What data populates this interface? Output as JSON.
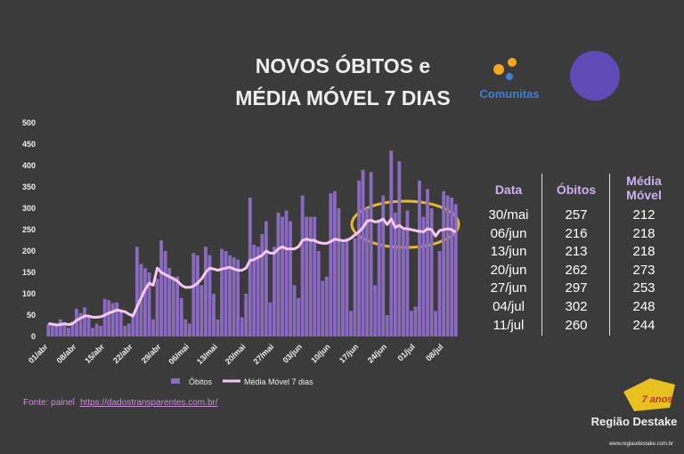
{
  "chart_data": {
    "type": "bar_line",
    "title_lines": [
      "NOVOS ÓBITOS e",
      "MÉDIA MÓVEL 7 DIAS"
    ],
    "categories": [
      "01/abr",
      null,
      null,
      null,
      null,
      null,
      null,
      "08/abr",
      null,
      null,
      null,
      null,
      null,
      null,
      "15/abr",
      null,
      null,
      null,
      null,
      null,
      null,
      "22/abr",
      null,
      null,
      null,
      null,
      null,
      null,
      "29/abr",
      null,
      null,
      null,
      null,
      null,
      null,
      "06/mai",
      null,
      null,
      null,
      null,
      null,
      null,
      "13/mai",
      null,
      null,
      null,
      null,
      null,
      null,
      "20/mai",
      null,
      null,
      null,
      null,
      null,
      null,
      "27/mai",
      null,
      null,
      null,
      null,
      null,
      null,
      "03/jun",
      null,
      null,
      null,
      null,
      null,
      null,
      "10/jun",
      null,
      null,
      null,
      null,
      null,
      null,
      "17/jun",
      null,
      null,
      null,
      null,
      null,
      null,
      "24/jun",
      null,
      null,
      null,
      null,
      null,
      null,
      "01/jul",
      null,
      null,
      null,
      null,
      null,
      null,
      "08/jul",
      null,
      null,
      null
    ],
    "series": [
      {
        "name": "Óbitos",
        "color": "#8a6bc0",
        "kind": "bar",
        "values": [
          28,
          30,
          25,
          40,
          30,
          20,
          35,
          65,
          55,
          68,
          45,
          20,
          30,
          25,
          88,
          85,
          78,
          80,
          60,
          25,
          30,
          55,
          210,
          170,
          160,
          150,
          40,
          135,
          225,
          200,
          160,
          140,
          140,
          90,
          40,
          30,
          195,
          190,
          120,
          210,
          190,
          100,
          40,
          205,
          200,
          190,
          185,
          180,
          45,
          100,
          325,
          215,
          210,
          240,
          270,
          80,
          210,
          290,
          280,
          295,
          270,
          120,
          90,
          330,
          280,
          280,
          280,
          200,
          130,
          140,
          335,
          340,
          300,
          220,
          230,
          60,
          230,
          365,
          390,
          300,
          385,
          120,
          270,
          330,
          50,
          435,
          290,
          410,
          250,
          295,
          60,
          70,
          365,
          280,
          345,
          300,
          60,
          200,
          340,
          330,
          325,
          310
        ]
      },
      {
        "name": "Média Móvel 7 dias",
        "color": "#f4c8f2",
        "kind": "line",
        "values": [
          30,
          29,
          27,
          28,
          30,
          28,
          30,
          38,
          43,
          48,
          48,
          45,
          45,
          46,
          50,
          55,
          58,
          62,
          60,
          58,
          52,
          48,
          70,
          90,
          110,
          125,
          120,
          160,
          150,
          145,
          140,
          135,
          130,
          120,
          115,
          115,
          118,
          125,
          135,
          150,
          160,
          158,
          155,
          158,
          160,
          162,
          158,
          155,
          155,
          160,
          178,
          180,
          185,
          190,
          200,
          195,
          195,
          205,
          210,
          205,
          205,
          205,
          210,
          225,
          228,
          225,
          225,
          220,
          218,
          218,
          222,
          228,
          226,
          224,
          225,
          230,
          238,
          245,
          255,
          270,
          272,
          268,
          270,
          275,
          262,
          275,
          255,
          260,
          253,
          252,
          250,
          248,
          246,
          245,
          252,
          250,
          235,
          248,
          250,
          252,
          250,
          244
        ]
      }
    ],
    "ylim": [
      0,
      500
    ],
    "yticks": [
      0,
      50,
      100,
      150,
      200,
      250,
      300,
      350,
      400,
      450,
      500
    ],
    "grid": false
  },
  "table": {
    "header": [
      "Data",
      "Óbitos",
      "Média Móvel"
    ],
    "rows": [
      [
        "30/mai",
        257,
        212
      ],
      [
        "06/jun",
        216,
        218
      ],
      [
        "13/jun",
        213,
        218
      ],
      [
        "20/jun",
        262,
        273
      ],
      [
        "27/jun",
        297,
        253
      ],
      [
        "04/jul",
        302,
        248
      ],
      [
        "11/jul",
        260,
        244
      ]
    ]
  },
  "source": {
    "prefix": "Fonte: painel",
    "link": "https://dadostransparentes.com.br/"
  },
  "logos": {
    "comunitas": "Comunitas",
    "regiao": "Região Destake",
    "anos": "7 anos",
    "site": "www.regiaodestake.com.br"
  }
}
